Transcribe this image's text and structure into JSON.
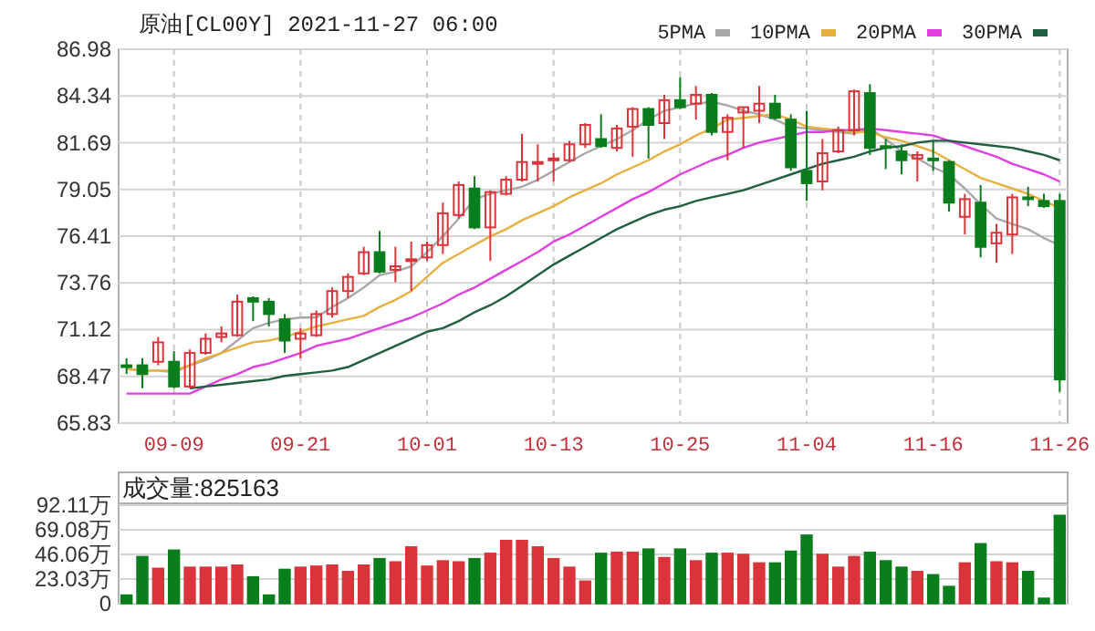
{
  "chart_data": [
    {
      "type": "candlestick",
      "title": "原油[CL00Y] 2021-11-27 06:00",
      "categories": [
        null,
        null,
        null,
        "09-09",
        null,
        null,
        null,
        null,
        null,
        null,
        null,
        "09-21",
        null,
        null,
        null,
        null,
        null,
        null,
        null,
        "10-01",
        null,
        null,
        null,
        null,
        null,
        null,
        null,
        "10-13",
        null,
        null,
        null,
        null,
        null,
        null,
        null,
        "10-25",
        null,
        null,
        null,
        null,
        null,
        null,
        null,
        "11-04",
        null,
        null,
        null,
        null,
        null,
        null,
        null,
        "11-16",
        null,
        null,
        null,
        null,
        null,
        null,
        null,
        "11-26"
      ],
      "ohlc": [
        [
          69.1,
          69.5,
          68.6,
          69.0
        ],
        [
          69.1,
          69.5,
          67.8,
          68.6
        ],
        [
          69.3,
          70.7,
          69.1,
          70.4
        ],
        [
          69.3,
          69.9,
          67.8,
          67.9
        ],
        [
          67.9,
          70.0,
          67.8,
          69.8
        ],
        [
          69.8,
          70.9,
          69.7,
          70.6
        ],
        [
          70.7,
          71.3,
          70.4,
          70.9
        ],
        [
          70.8,
          73.1,
          70.7,
          72.7
        ],
        [
          72.9,
          73.0,
          71.6,
          72.7
        ],
        [
          72.7,
          72.9,
          71.3,
          72.0
        ],
        [
          71.7,
          72.0,
          69.8,
          70.5
        ],
        [
          70.6,
          71.2,
          69.5,
          70.9
        ],
        [
          70.8,
          72.2,
          70.7,
          72.0
        ],
        [
          72.0,
          73.5,
          71.8,
          73.3
        ],
        [
          73.3,
          74.3,
          72.9,
          74.1
        ],
        [
          74.3,
          75.8,
          74.2,
          75.5
        ],
        [
          75.5,
          76.7,
          74.3,
          74.4
        ],
        [
          74.5,
          75.8,
          73.8,
          74.7
        ],
        [
          75.0,
          76.1,
          73.3,
          75.1
        ],
        [
          75.2,
          76.1,
          75.0,
          75.9
        ],
        [
          75.9,
          78.3,
          75.4,
          77.7
        ],
        [
          77.6,
          79.5,
          77.4,
          79.3
        ],
        [
          79.1,
          79.8,
          76.8,
          76.9
        ],
        [
          76.9,
          79.0,
          75.0,
          78.9
        ],
        [
          78.8,
          79.8,
          78.7,
          79.6
        ],
        [
          79.6,
          82.2,
          79.5,
          80.6
        ],
        [
          80.5,
          81.6,
          79.5,
          80.6
        ],
        [
          80.7,
          81.1,
          79.5,
          80.8
        ],
        [
          80.7,
          81.8,
          80.6,
          81.6
        ],
        [
          81.6,
          82.8,
          81.4,
          82.7
        ],
        [
          81.9,
          83.3,
          81.4,
          81.5
        ],
        [
          81.4,
          82.7,
          81.2,
          82.5
        ],
        [
          82.6,
          83.7,
          80.9,
          83.6
        ],
        [
          83.6,
          83.7,
          80.8,
          82.7
        ],
        [
          82.8,
          84.4,
          81.9,
          84.1
        ],
        [
          84.1,
          85.4,
          83.6,
          83.7
        ],
        [
          83.9,
          84.9,
          83.0,
          84.4
        ],
        [
          84.4,
          84.5,
          82.1,
          82.3
        ],
        [
          82.3,
          83.3,
          80.7,
          83.1
        ],
        [
          83.4,
          83.7,
          81.4,
          83.7
        ],
        [
          83.5,
          84.9,
          82.8,
          83.9
        ],
        [
          83.9,
          84.4,
          83.0,
          83.1
        ],
        [
          83.0,
          83.3,
          80.1,
          80.3
        ],
        [
          80.1,
          83.5,
          78.4,
          79.4
        ],
        [
          79.5,
          81.9,
          79.0,
          81.1
        ],
        [
          81.2,
          82.6,
          81.1,
          82.4
        ],
        [
          82.4,
          84.7,
          82.1,
          84.6
        ],
        [
          84.5,
          85.0,
          81.0,
          81.4
        ],
        [
          81.5,
          81.9,
          80.2,
          81.4
        ],
        [
          81.2,
          81.6,
          79.9,
          80.7
        ],
        [
          80.8,
          81.2,
          79.5,
          81.0
        ],
        [
          80.8,
          81.8,
          80.1,
          80.7
        ],
        [
          80.6,
          80.7,
          77.8,
          78.3
        ],
        [
          77.5,
          78.8,
          76.5,
          78.5
        ],
        [
          78.3,
          79.3,
          75.2,
          75.8
        ],
        [
          76.0,
          77.1,
          74.9,
          76.6
        ],
        [
          76.5,
          78.8,
          75.4,
          78.6
        ],
        [
          78.6,
          79.2,
          78.1,
          78.5
        ],
        [
          78.4,
          78.8,
          78.0,
          78.1
        ],
        [
          78.4,
          78.8,
          67.6,
          68.3
        ]
      ],
      "colors": [
        "#0a7d1c",
        "#0a7d1c",
        "#d9343a",
        "#0a7d1c",
        "#d9343a",
        "#d9343a",
        "#d9343a",
        "#d9343a",
        "#0a7d1c",
        "#0a7d1c",
        "#0a7d1c",
        "#d9343a",
        "#d9343a",
        "#d9343a",
        "#d9343a",
        "#d9343a",
        "#0a7d1c",
        "#d9343a",
        "#d9343a",
        "#d9343a",
        "#d9343a",
        "#d9343a",
        "#0a7d1c",
        "#d9343a",
        "#d9343a",
        "#d9343a",
        "#d9343a",
        "#d9343a",
        "#d9343a",
        "#d9343a",
        "#0a7d1c",
        "#d9343a",
        "#d9343a",
        "#0a7d1c",
        "#d9343a",
        "#0a7d1c",
        "#d9343a",
        "#0a7d1c",
        "#d9343a",
        "#d9343a",
        "#d9343a",
        "#0a7d1c",
        "#0a7d1c",
        "#0a7d1c",
        "#d9343a",
        "#d9343a",
        "#d9343a",
        "#0a7d1c",
        "#0a7d1c",
        "#0a7d1c",
        "#d9343a",
        "#0a7d1c",
        "#0a7d1c",
        "#d9343a",
        "#0a7d1c",
        "#d9343a",
        "#d9343a",
        "#0a7d1c",
        "#0a7d1c",
        "#0a7d1c"
      ],
      "series": [
        {
          "name": "5PMA",
          "type": "line",
          "color": "#a8a8a8",
          "values": [
            68.9,
            68.8,
            68.8,
            68.7,
            69.1,
            69.4,
            69.8,
            70.5,
            71.2,
            71.5,
            71.7,
            71.8,
            71.8,
            72.4,
            72.9,
            73.5,
            74.2,
            74.4,
            74.7,
            75.5,
            76.4,
            77.4,
            78.5,
            78.8,
            79.0,
            79.2,
            79.6,
            80.1,
            80.6,
            81.1,
            81.5,
            81.9,
            82.4,
            83.0,
            83.5,
            83.7,
            83.9,
            84.0,
            83.8,
            83.5,
            83.3,
            83.0,
            82.6,
            82.5,
            82.4,
            82.3,
            82.2,
            82.5,
            81.9,
            81.2,
            80.8,
            80.3,
            79.9,
            79.1,
            78.2,
            77.4,
            77.1,
            76.8,
            76.3,
            75.9
          ]
        },
        {
          "name": "10PMA",
          "type": "line",
          "color": "#e8b040",
          "values": [
            68.9,
            68.8,
            68.8,
            68.8,
            69.1,
            69.5,
            69.8,
            70.1,
            70.4,
            70.5,
            70.7,
            71.0,
            71.3,
            71.5,
            71.7,
            71.9,
            72.4,
            72.8,
            73.3,
            74.1,
            74.9,
            75.4,
            75.9,
            76.4,
            76.8,
            77.3,
            77.7,
            78.1,
            78.6,
            79.0,
            79.4,
            79.9,
            80.3,
            80.7,
            81.2,
            81.6,
            82.1,
            82.5,
            83.0,
            83.1,
            83.2,
            83.3,
            83.0,
            82.6,
            82.5,
            82.4,
            82.3,
            82.3,
            82.0,
            81.8,
            81.5,
            81.2,
            80.7,
            80.2,
            79.7,
            79.4,
            79.1,
            78.8,
            78.4,
            78.0
          ]
        },
        {
          "name": "20PMA",
          "type": "line",
          "color": "#e040e0",
          "values": [
            67.5,
            67.5,
            67.5,
            67.5,
            67.5,
            67.9,
            68.3,
            68.6,
            69.0,
            69.2,
            69.5,
            69.8,
            70.2,
            70.4,
            70.6,
            70.9,
            71.2,
            71.5,
            71.8,
            72.2,
            72.6,
            73.1,
            73.5,
            74.0,
            74.5,
            75.0,
            75.5,
            76.1,
            76.5,
            77.0,
            77.5,
            78.0,
            78.5,
            78.9,
            79.4,
            79.9,
            80.3,
            80.7,
            81.0,
            81.4,
            81.7,
            81.9,
            82.1,
            82.3,
            82.3,
            82.4,
            82.4,
            82.5,
            82.4,
            82.3,
            82.2,
            82.1,
            81.8,
            81.5,
            81.2,
            80.9,
            80.5,
            80.2,
            79.9,
            79.5
          ]
        },
        {
          "name": "30PMA",
          "type": "line",
          "color": "#1f5f3f",
          "values": [
            null,
            null,
            null,
            null,
            67.8,
            67.9,
            68.0,
            68.1,
            68.2,
            68.3,
            68.5,
            68.6,
            68.7,
            68.8,
            69.0,
            69.4,
            69.8,
            70.2,
            70.6,
            71.0,
            71.2,
            71.6,
            72.1,
            72.5,
            73.0,
            73.6,
            74.2,
            74.8,
            75.3,
            75.8,
            76.3,
            76.8,
            77.2,
            77.6,
            77.9,
            78.1,
            78.4,
            78.6,
            78.8,
            79.0,
            79.3,
            79.6,
            79.9,
            80.2,
            80.5,
            80.7,
            80.9,
            81.2,
            81.4,
            81.5,
            81.7,
            81.8,
            81.8,
            81.7,
            81.6,
            81.5,
            81.4,
            81.2,
            81.0,
            80.7
          ]
        }
      ],
      "ylim": [
        65.83,
        86.98
      ],
      "yticks": [
        65.83,
        68.47,
        71.12,
        73.76,
        76.41,
        79.05,
        81.69,
        84.34,
        86.98
      ],
      "grid": true,
      "legend": "top right"
    },
    {
      "type": "bar",
      "title": "成交量:825163",
      "categories": [
        null,
        null,
        null,
        null,
        null,
        null,
        null,
        null,
        null,
        null,
        null,
        null,
        null,
        null,
        null,
        null,
        null,
        null,
        null,
        null,
        null,
        null,
        null,
        null,
        null,
        null,
        null,
        null,
        null,
        null,
        null,
        null,
        null,
        null,
        null,
        null,
        null,
        null,
        null,
        null,
        null,
        null,
        null,
        null,
        null,
        null,
        null,
        null,
        null,
        null,
        null,
        null,
        null,
        null,
        null,
        null,
        null,
        null,
        null,
        null
      ],
      "values": [
        8,
        44,
        33,
        50,
        34,
        34,
        34,
        36,
        25,
        8,
        32,
        34,
        35,
        36,
        30,
        36,
        42,
        39,
        53,
        35,
        40,
        39,
        42,
        47,
        59,
        59,
        53,
        42,
        34,
        21,
        47,
        48,
        48,
        51,
        43,
        51,
        40,
        47,
        47,
        46,
        38,
        38,
        49,
        64,
        46,
        34,
        44,
        48,
        40,
        34,
        30,
        27,
        16,
        38,
        56,
        39,
        38,
        30,
        5,
        82.5
      ],
      "colors": [
        "#0a7d1c",
        "#0a7d1c",
        "#d9343a",
        "#0a7d1c",
        "#d9343a",
        "#d9343a",
        "#d9343a",
        "#d9343a",
        "#0a7d1c",
        "#0a7d1c",
        "#0a7d1c",
        "#d9343a",
        "#d9343a",
        "#d9343a",
        "#d9343a",
        "#d9343a",
        "#0a7d1c",
        "#d9343a",
        "#d9343a",
        "#d9343a",
        "#d9343a",
        "#d9343a",
        "#0a7d1c",
        "#d9343a",
        "#d9343a",
        "#d9343a",
        "#d9343a",
        "#d9343a",
        "#d9343a",
        "#d9343a",
        "#0a7d1c",
        "#d9343a",
        "#d9343a",
        "#0a7d1c",
        "#d9343a",
        "#0a7d1c",
        "#d9343a",
        "#0a7d1c",
        "#d9343a",
        "#d9343a",
        "#d9343a",
        "#0a7d1c",
        "#0a7d1c",
        "#0a7d1c",
        "#d9343a",
        "#d9343a",
        "#d9343a",
        "#0a7d1c",
        "#0a7d1c",
        "#0a7d1c",
        "#d9343a",
        "#0a7d1c",
        "#0a7d1c",
        "#d9343a",
        "#0a7d1c",
        "#d9343a",
        "#d9343a",
        "#0a7d1c",
        "#0a7d1c",
        "#0a7d1c"
      ],
      "ylim": [
        0,
        92.11
      ],
      "yticks": [
        {
          "value": 0,
          "label": "0"
        },
        {
          "value": 23.03,
          "label": "23.03万"
        },
        {
          "value": 46.06,
          "label": "46.06万"
        },
        {
          "value": 69.08,
          "label": "69.08万"
        },
        {
          "value": 92.11,
          "label": "92.11万"
        }
      ],
      "grid": "y",
      "tick_labels": "y"
    }
  ]
}
